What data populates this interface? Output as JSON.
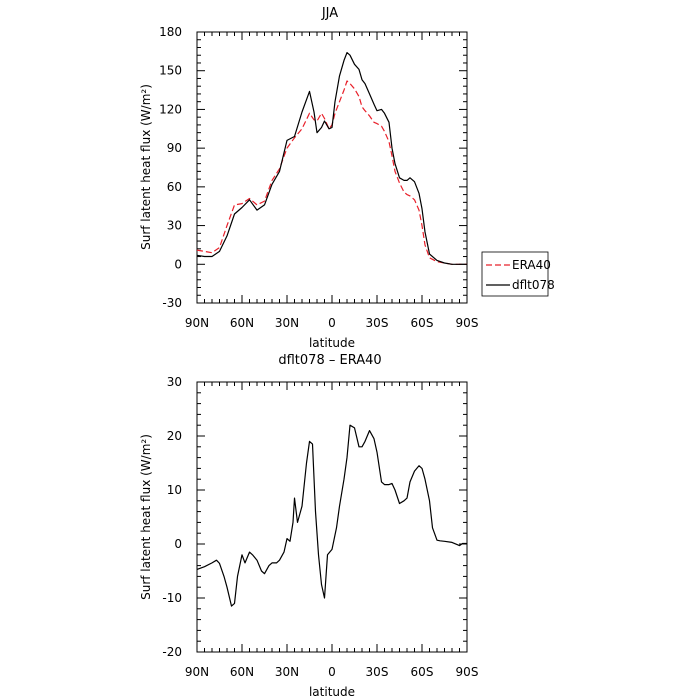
{
  "chart_data": [
    {
      "type": "line",
      "title": "JJA",
      "xlabel": "latitude",
      "ylabel": "Surf latent heat flux (W/m²)",
      "xlim": [
        90,
        -90
      ],
      "ylim": [
        -30,
        180
      ],
      "x_ticks": [
        90,
        60,
        30,
        0,
        -30,
        -60,
        -90
      ],
      "x_tick_labels": [
        "90N",
        "60N",
        "30N",
        "0",
        "30S",
        "60S",
        "90S"
      ],
      "y_ticks": [
        -30,
        0,
        30,
        60,
        90,
        120,
        150,
        180
      ],
      "y_tick_labels": [
        "-30",
        "0",
        "30",
        "60",
        "90",
        "120",
        "150",
        "180"
      ],
      "legend": {
        "placement": "outside-right",
        "entries": [
          "ERA40",
          "dflt078"
        ]
      },
      "series": [
        {
          "name": "ERA40",
          "color": "#e8202a",
          "dash": "dashed",
          "x": [
            90,
            85,
            80,
            75,
            70,
            65,
            60,
            55,
            50,
            45,
            40,
            35,
            30,
            25,
            20,
            15,
            12,
            10,
            7,
            5,
            2,
            0,
            -2,
            -5,
            -8,
            -10,
            -12,
            -15,
            -18,
            -20,
            -22,
            -25,
            -28,
            -30,
            -33,
            -35,
            -38,
            -40,
            -42,
            -45,
            -48,
            -50,
            -52,
            -55,
            -58,
            -60,
            -62,
            -65,
            -70,
            -75,
            -80,
            -85,
            -90
          ],
          "y": [
            11,
            10,
            9,
            13,
            30,
            46,
            47,
            51,
            46,
            49,
            65,
            74,
            90,
            98,
            105,
            117,
            112,
            111,
            117,
            113,
            105,
            108,
            117,
            126,
            135,
            142,
            140,
            136,
            130,
            122,
            119,
            115,
            110,
            109,
            107,
            103,
            95,
            84,
            72,
            63,
            56,
            54,
            53,
            50,
            42,
            30,
            15,
            5,
            2,
            1,
            0,
            0,
            0
          ]
        },
        {
          "name": "dflt078",
          "color": "#000000",
          "dash": "solid",
          "x": [
            90,
            85,
            80,
            75,
            70,
            65,
            60,
            55,
            50,
            45,
            40,
            35,
            30,
            25,
            20,
            15,
            12,
            10,
            7,
            5,
            2,
            0,
            -2,
            -5,
            -8,
            -10,
            -12,
            -15,
            -18,
            -20,
            -22,
            -25,
            -28,
            -30,
            -33,
            -35,
            -38,
            -40,
            -42,
            -45,
            -48,
            -50,
            -52,
            -55,
            -58,
            -60,
            -62,
            -65,
            -70,
            -75,
            -80,
            -85,
            -90
          ],
          "y": [
            7,
            6,
            6,
            10,
            22,
            39,
            44,
            50,
            42,
            46,
            62,
            72,
            96,
            99,
            118,
            134,
            118,
            102,
            106,
            111,
            105,
            106,
            126,
            146,
            158,
            164,
            162,
            155,
            151,
            143,
            140,
            132,
            124,
            119,
            120,
            117,
            110,
            90,
            78,
            67,
            65,
            65,
            67,
            64,
            55,
            43,
            25,
            8,
            3,
            1,
            0,
            0,
            0
          ]
        }
      ]
    },
    {
      "type": "line",
      "title": "dflt078 – ERA40",
      "xlabel": "latitude",
      "ylabel": "Surf latent heat flux (W/m²)",
      "xlim": [
        90,
        -90
      ],
      "ylim": [
        -20,
        30
      ],
      "x_ticks": [
        90,
        60,
        30,
        0,
        -30,
        -60,
        -90
      ],
      "x_tick_labels": [
        "90N",
        "60N",
        "30N",
        "0",
        "30S",
        "60S",
        "90S"
      ],
      "y_ticks": [
        -20,
        -10,
        0,
        10,
        20,
        30
      ],
      "y_tick_labels": [
        "-20",
        "-10",
        "0",
        "10",
        "20",
        "30"
      ],
      "series": [
        {
          "color": "#000000",
          "dash": "solid",
          "x": [
            90,
            85,
            80,
            77,
            75,
            72,
            70,
            67,
            65,
            63,
            60,
            58,
            55,
            53,
            50,
            47,
            45,
            42,
            40,
            37,
            35,
            32,
            30,
            28,
            26,
            25,
            23,
            20,
            17,
            15,
            13,
            11,
            9,
            7,
            5,
            3,
            0,
            -3,
            -5,
            -8,
            -10,
            -12,
            -15,
            -18,
            -20,
            -22,
            -25,
            -28,
            -30,
            -33,
            -35,
            -38,
            -40,
            -42,
            -45,
            -48,
            -50,
            -52,
            -55,
            -58,
            -60,
            -62,
            -65,
            -67,
            -70,
            -72,
            -75,
            -80,
            -85,
            -87,
            -90
          ],
          "y": [
            -4.7,
            -4.2,
            -3.5,
            -3.0,
            -3.6,
            -6.0,
            -8.0,
            -11.5,
            -11.0,
            -6.0,
            -2.0,
            -3.5,
            -1.5,
            -2.0,
            -3.0,
            -5.0,
            -5.5,
            -4.0,
            -3.5,
            -3.5,
            -3.0,
            -1.5,
            1.0,
            0.5,
            4.0,
            8.5,
            4.0,
            7.0,
            15.0,
            19.0,
            18.5,
            6.0,
            -2.0,
            -7.5,
            -10.0,
            -2.0,
            -1.0,
            3.0,
            7.0,
            12.0,
            16.0,
            22.0,
            21.5,
            18.0,
            18.0,
            19.0,
            21.0,
            19.5,
            17.0,
            11.5,
            11.0,
            11.0,
            11.2,
            10.0,
            7.5,
            8.0,
            8.5,
            11.5,
            13.5,
            14.5,
            14.0,
            12.0,
            8.0,
            3.0,
            0.7,
            0.6,
            0.5,
            0.3,
            -0.3,
            0.1,
            0.1
          ]
        }
      ]
    }
  ]
}
